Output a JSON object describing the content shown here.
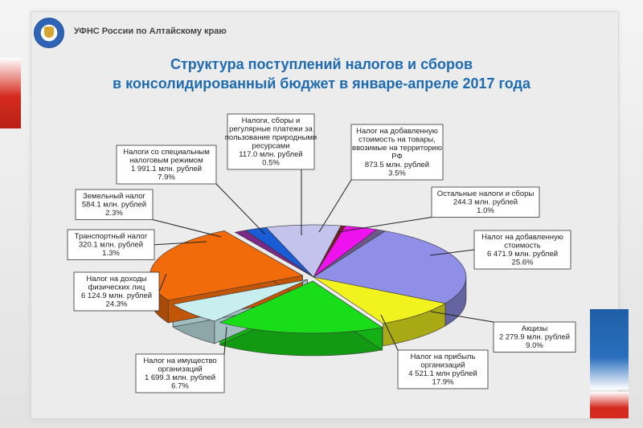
{
  "header": {
    "org_name": "УФНС России по Алтайскому краю",
    "title_line1": "Структура поступлений налогов и сборов",
    "title_line2": "в консолидированный бюджет в январе-апреле 2017 года"
  },
  "colors": {
    "title": "#1f6bb0",
    "accent_red": "#d52b1e",
    "accent_blue": "#1f5fa8"
  },
  "chart_data": {
    "type": "pie",
    "unit": "млн. рублей",
    "title": "Структура поступлений налогов и сборов в консолидированный бюджет в январе-апреле 2017 года",
    "slices": [
      {
        "name": "Налог на добавленную стоимость",
        "value": 6471.9,
        "percent": 25.6,
        "color": "#8f8fe8",
        "label_lines": [
          "Налог на добавленную",
          "стоимость",
          "6 471.9 млн. рублей",
          "25.6%"
        ]
      },
      {
        "name": "Акцизы",
        "value": 2279.9,
        "percent": 9.0,
        "color": "#f2f21e",
        "label_lines": [
          "Акцизы",
          "2 279.9 млн. рублей",
          "9.0%"
        ]
      },
      {
        "name": "Налог на прибыль организаций",
        "value": 4521.1,
        "percent": 17.9,
        "color": "#19dd19",
        "label_lines": [
          "Налог на прибыль",
          "организаций",
          "4 521.1 млн рублей",
          "17.9%"
        ]
      },
      {
        "name": "Налог на имущество организаций",
        "value": 1699.3,
        "percent": 6.7,
        "color": "#c9eef0",
        "label_lines": [
          "Налог на имущество",
          "организаций",
          "1 699.3 млн. рублей",
          "6.7%"
        ]
      },
      {
        "name": "Налог на доходы физических лиц",
        "value": 6124.9,
        "percent": 24.3,
        "color": "#f26b0a",
        "label_lines": [
          "Налог на доходы",
          "физических лиц",
          "6 124.9 млн. рублей",
          "24.3%"
        ]
      },
      {
        "name": "Транспортный налог",
        "value": 320.1,
        "percent": 1.3,
        "color": "#7a2a86",
        "label_lines": [
          "Транспортный налог",
          "320.1 млн. рублей",
          "1.3%"
        ]
      },
      {
        "name": "Земельный налог",
        "value": 584.1,
        "percent": 2.3,
        "color": "#1a5bd6",
        "label_lines": [
          "Земельный налог",
          "584.1 млн. рублей",
          "2.3%"
        ]
      },
      {
        "name": "Налоги со специальным налоговым режимом",
        "value": 1991.1,
        "percent": 7.9,
        "color": "#c3c3ee",
        "label_lines": [
          "Налоги со специальным",
          "налоговым режимом",
          "1 991.1 млн. рублей",
          "7.9%"
        ]
      },
      {
        "name": "Налоги, сборы и регулярные платежи за пользование природными ресурсами",
        "value": 117.0,
        "percent": 0.5,
        "color": "#7b1d1d",
        "label_lines": [
          "Налоги, сборы и",
          "регулярные платежи за",
          "пользование природными",
          "ресурсами",
          "117.0 млн. рублей",
          "0.5%"
        ]
      },
      {
        "name": "Налог на добавленную стоимость на товары, ввозимые на территорию РФ",
        "value": 873.5,
        "percent": 3.5,
        "color": "#ee12ee",
        "label_lines": [
          "Налог на добавленную",
          "стоимость на товары,",
          "ввозимые на территорию",
          "РФ",
          "873.5 млн. рублей",
          "3.5%"
        ]
      },
      {
        "name": "Остальные налоги и сборы",
        "value": 244.3,
        "percent": 1.0,
        "color": "#6b5a8a",
        "label_lines": [
          "Остальные налоги и сборы",
          "244.3 млн. рублей",
          "1.0%"
        ]
      }
    ]
  }
}
